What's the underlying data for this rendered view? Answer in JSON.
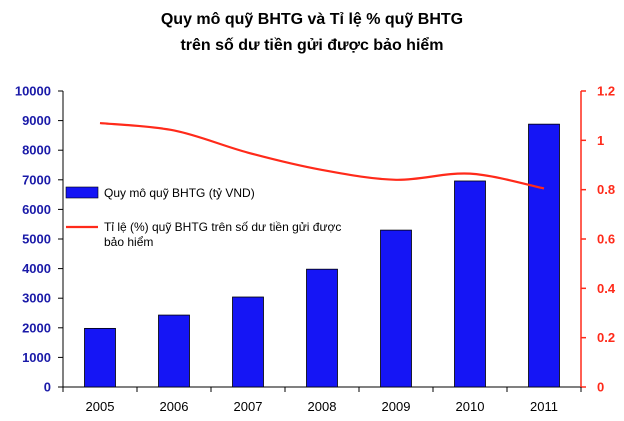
{
  "chart_data": {
    "type": "bar",
    "title": [
      "Quy mô quỹ BHTG và Tỉ lệ % quỹ BHTG",
      "trên số dư tiền gửi được bảo hiểm"
    ],
    "categories": [
      "2005",
      "2006",
      "2007",
      "2008",
      "2009",
      "2010",
      "2011"
    ],
    "series": [
      {
        "name": "Quy mô quỹ BHTG (tỷ VND)",
        "type": "bar",
        "axis": "left",
        "color": "#1515f5",
        "values": [
          1980,
          2430,
          3040,
          3980,
          5300,
          6960,
          8880
        ]
      },
      {
        "name": "Tỉ lệ (%) quỹ BHTG trên số dư tiền gửi được bảo hiểm",
        "name_lines": [
          "Tỉ lệ (%) quỹ BHTG trên số dư tiền gửi được",
          "bảo hiểm"
        ],
        "type": "line",
        "axis": "right",
        "color": "#ff2a1a",
        "values": [
          1.07,
          1.04,
          0.95,
          0.88,
          0.84,
          0.865,
          0.805
        ]
      }
    ],
    "y_left": {
      "lim": [
        0,
        10000
      ],
      "ticks": [
        "0",
        "1000",
        "2000",
        "3000",
        "4000",
        "5000",
        "6000",
        "7000",
        "8000",
        "9000",
        "10000"
      ],
      "color": "#1a1aa8"
    },
    "y_right": {
      "lim": [
        0,
        1.2
      ],
      "ticks": [
        "0",
        "0.2",
        "0.4",
        "0.6",
        "0.8",
        "1",
        "1.2"
      ],
      "color": "#ff2a1a"
    },
    "grid": false,
    "legend": "left, inside plot"
  }
}
